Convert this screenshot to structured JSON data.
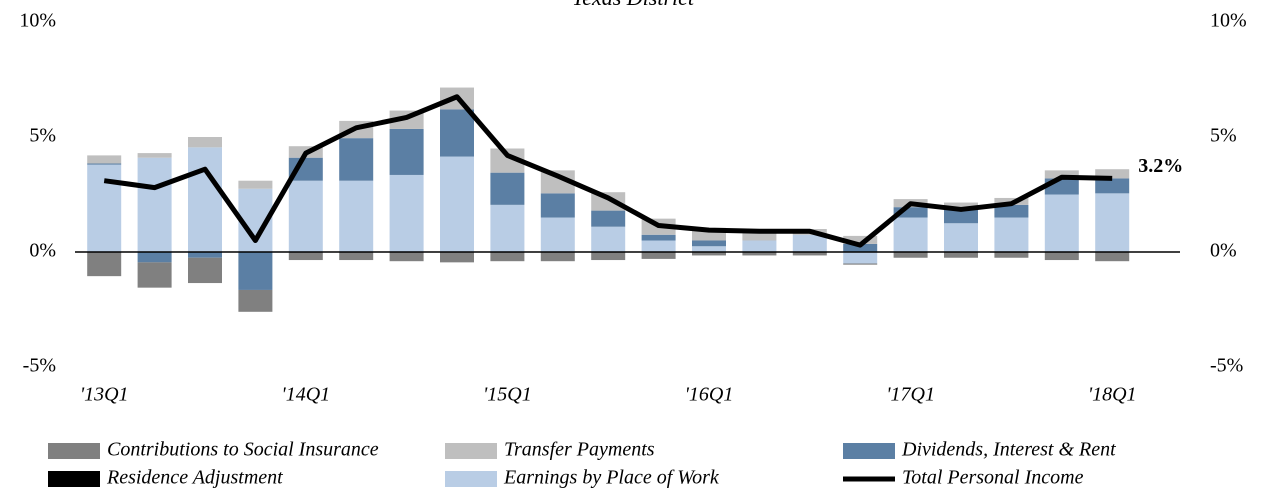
{
  "chart_data": {
    "type": "bar",
    "title": "Texas District",
    "categories": [
      "'13Q1",
      null,
      null,
      null,
      "'14Q1",
      null,
      null,
      null,
      "'15Q1",
      null,
      null,
      null,
      "'16Q1",
      null,
      null,
      null,
      "'17Q1",
      null,
      null,
      null,
      "'18Q1"
    ],
    "series": [
      {
        "name": "Contributions to Social Insurance",
        "color": "#808080",
        "values": [
          -1.05,
          -1.1,
          -1.1,
          -0.95,
          -0.35,
          -0.35,
          -0.4,
          -0.45,
          -0.4,
          -0.4,
          -0.35,
          -0.3,
          -0.15,
          -0.15,
          -0.15,
          -0.05,
          -0.25,
          -0.25,
          -0.25,
          -0.35,
          -0.4
        ]
      },
      {
        "name": "Transfer Payments",
        "color": "#bfbfbf",
        "values": [
          0.35,
          0.2,
          0.45,
          0.35,
          0.5,
          0.75,
          0.8,
          0.95,
          1.05,
          1.0,
          0.8,
          0.7,
          0.55,
          0.45,
          0.25,
          0.35,
          0.35,
          0.3,
          0.3,
          0.35,
          0.4
        ]
      },
      {
        "name": "Dividends, Interest & Rent",
        "color": "#5b7fa4",
        "values": [
          0.05,
          -0.45,
          -0.25,
          -1.65,
          1.0,
          1.85,
          2.0,
          2.05,
          1.4,
          1.05,
          0.7,
          0.25,
          0.25,
          0,
          0,
          0.35,
          0.45,
          0.6,
          0.55,
          0.7,
          0.65
        ]
      },
      {
        "name": "Residence Adjustment",
        "color": "#000000",
        "values": [
          0,
          0,
          0,
          0,
          0,
          0,
          0,
          0,
          0,
          0,
          0,
          0,
          0,
          0,
          0,
          0,
          0,
          0,
          0,
          0,
          0
        ]
      },
      {
        "name": "Earnings by Place of Work",
        "color": "#b9cde5",
        "values": [
          3.8,
          4.1,
          4.55,
          2.75,
          3.1,
          3.1,
          3.35,
          4.15,
          2.05,
          1.5,
          1.1,
          0.5,
          0.25,
          0.5,
          0.75,
          -0.5,
          1.5,
          1.25,
          1.5,
          2.5,
          2.55
        ]
      },
      {
        "name": "Total Personal Income",
        "color": "#000000",
        "type": "line",
        "values": [
          3.1,
          2.8,
          3.6,
          0.5,
          4.3,
          5.4,
          5.85,
          6.75,
          4.2,
          3.3,
          2.35,
          1.15,
          0.95,
          0.9,
          0.9,
          0.3,
          2.1,
          1.85,
          2.1,
          3.25,
          3.2
        ],
        "value_labels": [
          null,
          null,
          null,
          null,
          null,
          null,
          null,
          null,
          null,
          null,
          null,
          null,
          null,
          null,
          null,
          null,
          null,
          null,
          null,
          null,
          "3.2%"
        ]
      }
    ],
    "ylim": [
      -5,
      10
    ],
    "yticks": [
      {
        "value": -5,
        "label": "-5%"
      },
      {
        "value": 0,
        "label": "0%"
      },
      {
        "value": 5,
        "label": "5%"
      },
      {
        "value": 10,
        "label": "10%"
      }
    ],
    "y2lim": [
      -5,
      10
    ],
    "y2ticks": [
      {
        "value": -5,
        "label": "-5%"
      },
      {
        "value": 0,
        "label": "0%"
      },
      {
        "value": 5,
        "label": "5%"
      },
      {
        "value": 10,
        "label": "10%"
      }
    ],
    "grid": false,
    "legend": "bottom"
  }
}
